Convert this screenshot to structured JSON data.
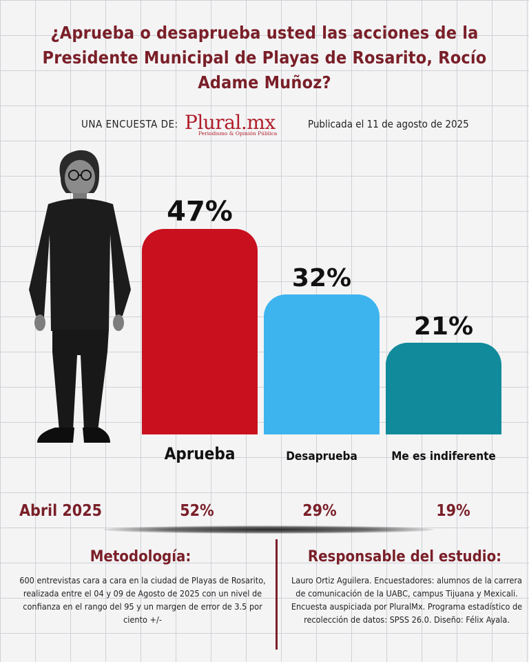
{
  "title": "¿Aprueba o desaprueba usted las acciones de la Presidente Municipal de Playas de Rosarito, Rocío Adame Muñoz?",
  "survey_label": "UNA ENCUESTA DE:",
  "logo": {
    "name": "Plural.mx",
    "tagline": "Periodismo & Opinión Pública"
  },
  "published": "Publicada el 11 de agosto de 2025",
  "chart_data": {
    "type": "bar",
    "categories": [
      "Aprueba",
      "Desaprueba",
      "Me es indiferente"
    ],
    "values": [
      47,
      32,
      21
    ],
    "value_labels": [
      "47%",
      "32%",
      "21%"
    ],
    "colors": [
      "#c8101e",
      "#3db4ee",
      "#118a9b"
    ],
    "ylim": [
      0,
      47
    ],
    "comparison": {
      "label": "Abril 2025",
      "values": [
        52,
        29,
        19
      ],
      "value_labels": [
        "52%",
        "29%",
        "19%"
      ]
    }
  },
  "methodology": {
    "title": "Metodología:",
    "text": "600 entrevistas cara a cara en la ciudad de Playas de Rosarito, realizada entre el 04 y 09 de Agosto de 2025 con un nivel de confianza en el rango del 95 y un margen de error de 3.5 por ciento +/-"
  },
  "responsible": {
    "title": "Responsable del estudio:",
    "text": "Lauro Ortiz Aguilera. Encuestadores: alumnos de la carrera de comunicación de la UABC, campus Tijuana y Mexicali. Encuesta auspiciada por PluralMx. Programa estadístico de recolección de datos: SPSS 26.0. Diseño: Félix Ayala."
  }
}
